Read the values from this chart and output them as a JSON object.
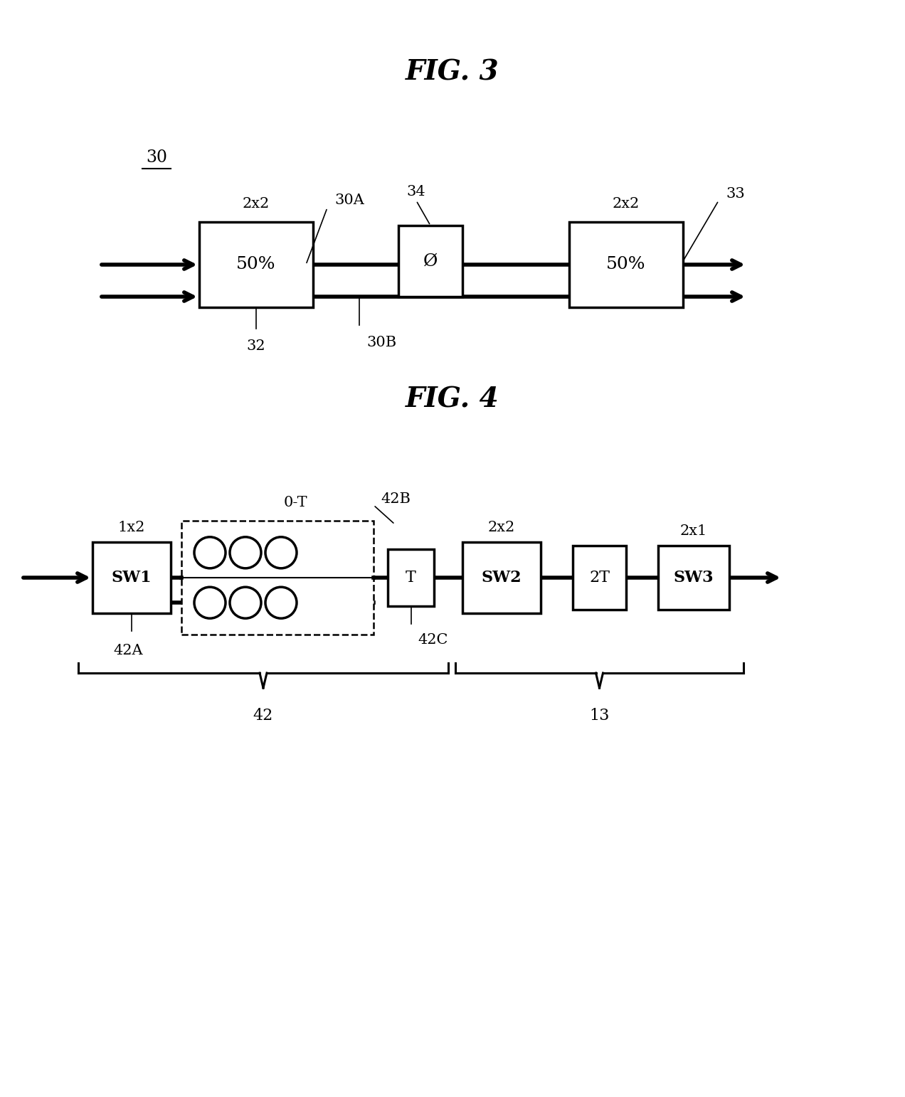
{
  "fig3_title": "FIG. 3",
  "fig4_title": "FIG. 4",
  "bg_color": "#ffffff",
  "line_color": "#000000",
  "box_color": "#ffffff",
  "fig3": {
    "label_30": "30",
    "box1_label": "50%",
    "box1_sublabel": "2x2",
    "box1_ref": "30A",
    "box_mid_label": "Ø",
    "box_mid_ref": "34",
    "box2_label": "50%",
    "box2_sublabel": "2x2",
    "box2_ref": "33",
    "lower_line_ref": "30B",
    "input_ref": "32"
  },
  "fig4": {
    "sw1_label": "SW1",
    "sw1_sublabel": "1x2",
    "sw1_ref": "42A",
    "delay_upper_label": "0-T",
    "delay_ref": "42B",
    "delay_lower_label": "T",
    "delay_lower_ref": "42C",
    "sw2_label": "SW2",
    "sw2_sublabel": "2x2",
    "box_2t_label": "2T",
    "sw3_label": "SW3",
    "sw3_sublabel": "2x1",
    "brace1_label": "42",
    "brace2_label": "13"
  }
}
